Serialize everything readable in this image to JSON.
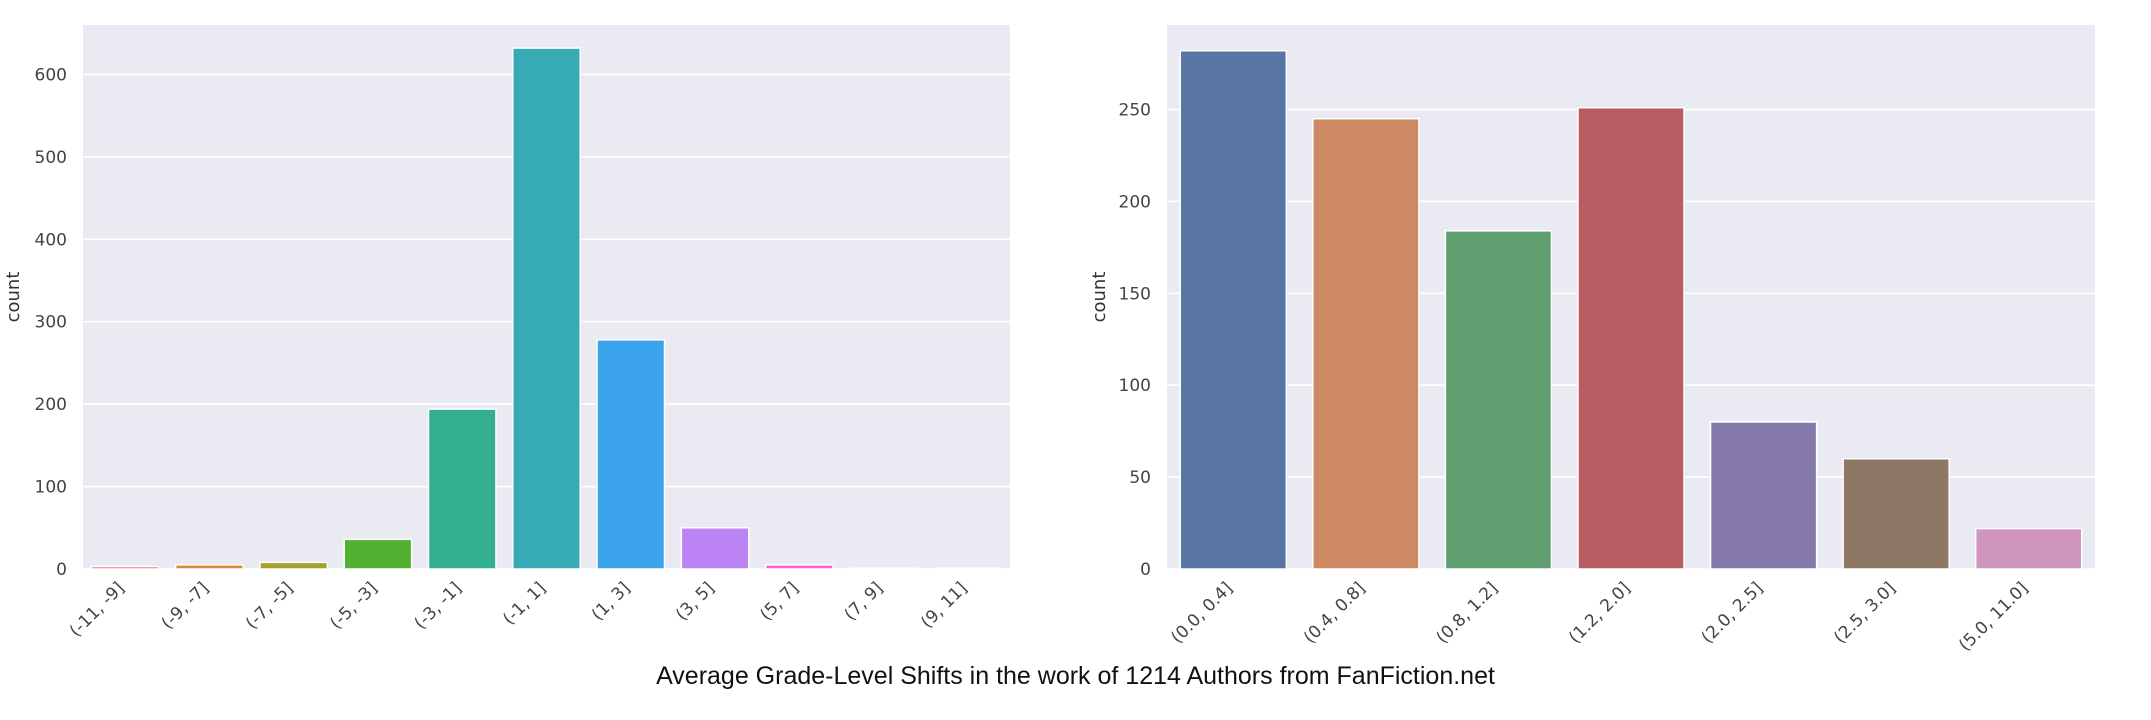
{
  "caption": "Average Grade-Level Shifts in the work of 1214 Authors from FanFiction.net",
  "chart_data": [
    {
      "type": "bar",
      "title": "",
      "xlabel": "",
      "ylabel": "count",
      "ylim": [
        0,
        660
      ],
      "yticks": [
        0,
        100,
        200,
        300,
        400,
        500,
        600
      ],
      "grid": true,
      "categories": [
        "(-11, -9]",
        "(-9, -7]",
        "(-7, -5]",
        "(-5, -3]",
        "(-3, -1]",
        "(-1, 1]",
        "(1, 3]",
        "(3, 5]",
        "(5, 7]",
        "(7, 9]",
        "(9, 11]"
      ],
      "values": [
        3,
        5,
        8,
        36,
        194,
        632,
        278,
        50,
        5,
        1,
        1
      ],
      "colors": [
        "#f77189",
        "#d58c32",
        "#a4a031",
        "#50b131",
        "#34ae91",
        "#37abb5",
        "#3ba3ec",
        "#bb83f4",
        "#f564d4",
        "#c8a2c8",
        "#f0a0b4"
      ]
    },
    {
      "type": "bar",
      "title": "",
      "xlabel": "",
      "ylabel": "count",
      "ylim": [
        0,
        296
      ],
      "yticks": [
        0,
        50,
        100,
        150,
        200,
        250
      ],
      "grid": true,
      "categories": [
        "(0.0, 0.4]",
        "(0.4, 0.8]",
        "(0.8, 1.2]",
        "(1.2, 2.0]",
        "(2.0, 2.5]",
        "(2.5, 3.0]",
        "(5.0, 11.0]"
      ],
      "values": [
        282,
        245,
        184,
        251,
        80,
        60,
        22
      ],
      "colors": [
        "#5875a4",
        "#cc8963",
        "#5f9e6e",
        "#b55d60",
        "#857aab",
        "#8d7866",
        "#d095bf"
      ]
    }
  ]
}
